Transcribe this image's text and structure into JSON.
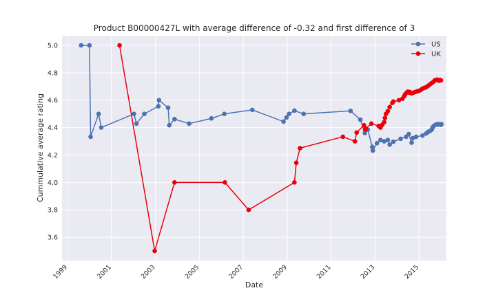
{
  "chart_data": {
    "type": "line",
    "title": "Product B00000427L with average difference of -0.32 and first difference of 3",
    "xlabel": "Date",
    "ylabel": "Cummulative average rating",
    "xlim": [
      "1998-10-01",
      "2016-04-01"
    ],
    "ylim": [
      3.43,
      5.07
    ],
    "x_ticks": [
      "1999",
      "2001",
      "2003",
      "2005",
      "2007",
      "2009",
      "2011",
      "2013",
      "2015"
    ],
    "y_ticks": [
      "3.6",
      "3.8",
      "4.0",
      "4.2",
      "4.4",
      "4.6",
      "4.8",
      "5.0"
    ],
    "grid": true,
    "legend_position": "top-right",
    "series": [
      {
        "name": "US",
        "color": "#4c72b0",
        "points": [
          [
            "1999-08-15",
            5.0
          ],
          [
            "2000-01-01",
            5.0
          ],
          [
            "2000-01-20",
            4.333
          ],
          [
            "2000-06-01",
            4.5
          ],
          [
            "2000-07-15",
            4.4
          ],
          [
            "2002-01-10",
            4.5
          ],
          [
            "2002-02-20",
            4.429
          ],
          [
            "2002-07-01",
            4.5
          ],
          [
            "2003-02-20",
            4.556
          ],
          [
            "2003-03-01",
            4.6
          ],
          [
            "2003-08-01",
            4.545
          ],
          [
            "2003-08-20",
            4.417
          ],
          [
            "2003-11-15",
            4.462
          ],
          [
            "2004-07-15",
            4.429
          ],
          [
            "2005-07-20",
            4.467
          ],
          [
            "2006-02-20",
            4.5
          ],
          [
            "2007-06-01",
            4.529
          ],
          [
            "2008-11-01",
            4.444
          ],
          [
            "2008-12-20",
            4.474
          ],
          [
            "2009-02-01",
            4.5
          ],
          [
            "2009-05-01",
            4.524
          ],
          [
            "2009-10-01",
            4.5
          ],
          [
            "2011-11-20",
            4.522
          ],
          [
            "2012-05-01",
            4.458
          ],
          [
            "2012-07-15",
            4.36
          ],
          [
            "2012-09-01",
            4.385
          ],
          [
            "2012-11-15",
            4.259
          ],
          [
            "2012-11-25",
            4.232
          ],
          [
            "2013-02-01",
            4.286
          ],
          [
            "2013-04-01",
            4.31
          ],
          [
            "2013-06-01",
            4.3
          ],
          [
            "2013-08-01",
            4.31
          ],
          [
            "2013-09-01",
            4.276
          ],
          [
            "2013-11-01",
            4.297
          ],
          [
            "2014-03-01",
            4.318
          ],
          [
            "2014-06-01",
            4.333
          ],
          [
            "2014-07-15",
            4.353
          ],
          [
            "2014-09-01",
            4.29
          ],
          [
            "2014-09-20",
            4.323
          ],
          [
            "2014-11-15",
            4.333
          ],
          [
            "2015-03-01",
            4.342
          ],
          [
            "2015-05-01",
            4.357
          ],
          [
            "2015-06-01",
            4.368
          ],
          [
            "2015-07-01",
            4.375
          ],
          [
            "2015-08-01",
            4.385
          ],
          [
            "2015-08-15",
            4.4
          ],
          [
            "2015-09-01",
            4.41
          ],
          [
            "2015-10-01",
            4.42
          ],
          [
            "2015-11-01",
            4.425
          ],
          [
            "2015-11-15",
            4.422
          ],
          [
            "2015-12-01",
            4.425
          ],
          [
            "2016-01-01",
            4.42
          ],
          [
            "2016-01-10",
            4.425
          ]
        ]
      },
      {
        "name": "UK",
        "color": "#e8000b",
        "points": [
          [
            "2001-05-15",
            5.0
          ],
          [
            "2002-12-20",
            3.5
          ],
          [
            "2003-11-15",
            4.0
          ],
          [
            "2006-03-01",
            4.0
          ],
          [
            "2007-04-01",
            3.8
          ],
          [
            "2009-05-01",
            4.0
          ],
          [
            "2009-06-01",
            4.143
          ],
          [
            "2009-08-01",
            4.25
          ],
          [
            "2011-07-15",
            4.333
          ],
          [
            "2012-02-01",
            4.3
          ],
          [
            "2012-03-01",
            4.364
          ],
          [
            "2012-07-01",
            4.417
          ],
          [
            "2012-07-20",
            4.385
          ],
          [
            "2012-08-01",
            4.393
          ],
          [
            "2012-11-01",
            4.429
          ],
          [
            "2013-03-01",
            4.412
          ],
          [
            "2013-04-01",
            4.4
          ],
          [
            "2013-05-01",
            4.42
          ],
          [
            "2013-06-01",
            4.44
          ],
          [
            "2013-06-15",
            4.47
          ],
          [
            "2013-07-01",
            4.5
          ],
          [
            "2013-08-01",
            4.52
          ],
          [
            "2013-09-01",
            4.55
          ],
          [
            "2013-10-15",
            4.58
          ],
          [
            "2013-11-01",
            4.59
          ],
          [
            "2014-02-01",
            4.6
          ],
          [
            "2014-04-01",
            4.61
          ],
          [
            "2014-05-01",
            4.63
          ],
          [
            "2014-05-20",
            4.645
          ],
          [
            "2014-06-15",
            4.657
          ],
          [
            "2014-07-01",
            4.662
          ],
          [
            "2014-07-20",
            4.655
          ],
          [
            "2014-08-01",
            4.66
          ],
          [
            "2014-09-01",
            4.65
          ],
          [
            "2014-10-01",
            4.655
          ],
          [
            "2014-11-01",
            4.66
          ],
          [
            "2014-12-01",
            4.665
          ],
          [
            "2015-01-01",
            4.668
          ],
          [
            "2015-02-01",
            4.675
          ],
          [
            "2015-03-01",
            4.685
          ],
          [
            "2015-04-01",
            4.69
          ],
          [
            "2015-05-01",
            4.695
          ],
          [
            "2015-06-01",
            4.705
          ],
          [
            "2015-07-01",
            4.715
          ],
          [
            "2015-08-01",
            4.725
          ],
          [
            "2015-09-01",
            4.735
          ],
          [
            "2015-09-20",
            4.745
          ],
          [
            "2015-10-15",
            4.748
          ],
          [
            "2015-11-01",
            4.75
          ],
          [
            "2015-11-20",
            4.745
          ],
          [
            "2015-12-01",
            4.742
          ],
          [
            "2015-12-15",
            4.748
          ],
          [
            "2016-01-01",
            4.745
          ]
        ]
      }
    ]
  }
}
